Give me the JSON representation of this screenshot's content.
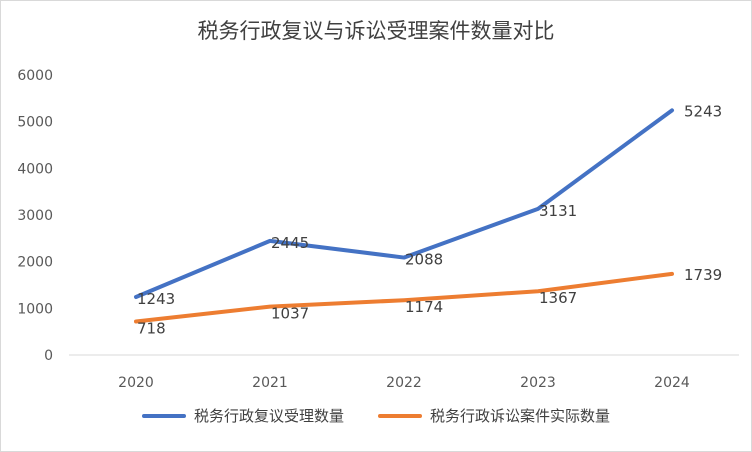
{
  "chart_data": {
    "type": "line",
    "title": "税务行政复议与诉讼受理案件数量对比",
    "categories": [
      "2020",
      "2021",
      "2022",
      "2023",
      "2024"
    ],
    "y_ticks": [
      "0",
      "1000",
      "2000",
      "3000",
      "4000",
      "5000",
      "6000"
    ],
    "ylim": [
      0,
      6000
    ],
    "grid": false,
    "legend_position": "bottom",
    "series": [
      {
        "name": "税务行政复议受理数量",
        "color": "#4472c4",
        "values": [
          1243,
          2445,
          2088,
          3131,
          5243
        ],
        "labels": [
          "1243",
          "2445",
          "2088",
          "3131",
          "5243"
        ]
      },
      {
        "name": "税务行政诉讼案件实际数量",
        "color": "#ed7d31",
        "values": [
          718,
          1037,
          1174,
          1367,
          1739
        ],
        "labels": [
          "718",
          "1037",
          "1174",
          "1367",
          "1739"
        ]
      }
    ]
  }
}
